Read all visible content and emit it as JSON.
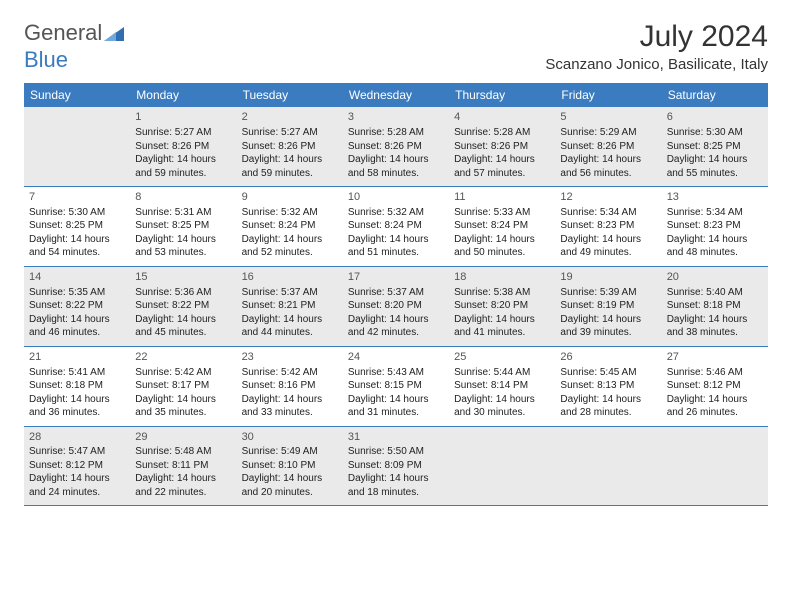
{
  "brand": {
    "name_part1": "General",
    "name_part2": "Blue",
    "triangle_color": "#2f6fb0"
  },
  "title": "July 2024",
  "location": "Scanzano Jonico, Basilicate, Italy",
  "colors": {
    "header_bg": "#3b7bbf",
    "header_text": "#ffffff",
    "row_border": "#3b7bbf",
    "shaded_bg": "#eaeaea",
    "page_bg": "#ffffff",
    "body_text": "#222222",
    "daynum_text": "#555555"
  },
  "day_names": [
    "Sunday",
    "Monday",
    "Tuesday",
    "Wednesday",
    "Thursday",
    "Friday",
    "Saturday"
  ],
  "weeks": [
    [
      {
        "num": "",
        "lines": [],
        "shaded": true
      },
      {
        "num": "1",
        "lines": [
          "Sunrise: 5:27 AM",
          "Sunset: 8:26 PM",
          "Daylight: 14 hours and 59 minutes."
        ],
        "shaded": true
      },
      {
        "num": "2",
        "lines": [
          "Sunrise: 5:27 AM",
          "Sunset: 8:26 PM",
          "Daylight: 14 hours and 59 minutes."
        ],
        "shaded": true
      },
      {
        "num": "3",
        "lines": [
          "Sunrise: 5:28 AM",
          "Sunset: 8:26 PM",
          "Daylight: 14 hours and 58 minutes."
        ],
        "shaded": true
      },
      {
        "num": "4",
        "lines": [
          "Sunrise: 5:28 AM",
          "Sunset: 8:26 PM",
          "Daylight: 14 hours and 57 minutes."
        ],
        "shaded": true
      },
      {
        "num": "5",
        "lines": [
          "Sunrise: 5:29 AM",
          "Sunset: 8:26 PM",
          "Daylight: 14 hours and 56 minutes."
        ],
        "shaded": true
      },
      {
        "num": "6",
        "lines": [
          "Sunrise: 5:30 AM",
          "Sunset: 8:25 PM",
          "Daylight: 14 hours and 55 minutes."
        ],
        "shaded": true
      }
    ],
    [
      {
        "num": "7",
        "lines": [
          "Sunrise: 5:30 AM",
          "Sunset: 8:25 PM",
          "Daylight: 14 hours and 54 minutes."
        ],
        "shaded": false
      },
      {
        "num": "8",
        "lines": [
          "Sunrise: 5:31 AM",
          "Sunset: 8:25 PM",
          "Daylight: 14 hours and 53 minutes."
        ],
        "shaded": false
      },
      {
        "num": "9",
        "lines": [
          "Sunrise: 5:32 AM",
          "Sunset: 8:24 PM",
          "Daylight: 14 hours and 52 minutes."
        ],
        "shaded": false
      },
      {
        "num": "10",
        "lines": [
          "Sunrise: 5:32 AM",
          "Sunset: 8:24 PM",
          "Daylight: 14 hours and 51 minutes."
        ],
        "shaded": false
      },
      {
        "num": "11",
        "lines": [
          "Sunrise: 5:33 AM",
          "Sunset: 8:24 PM",
          "Daylight: 14 hours and 50 minutes."
        ],
        "shaded": false
      },
      {
        "num": "12",
        "lines": [
          "Sunrise: 5:34 AM",
          "Sunset: 8:23 PM",
          "Daylight: 14 hours and 49 minutes."
        ],
        "shaded": false
      },
      {
        "num": "13",
        "lines": [
          "Sunrise: 5:34 AM",
          "Sunset: 8:23 PM",
          "Daylight: 14 hours and 48 minutes."
        ],
        "shaded": false
      }
    ],
    [
      {
        "num": "14",
        "lines": [
          "Sunrise: 5:35 AM",
          "Sunset: 8:22 PM",
          "Daylight: 14 hours and 46 minutes."
        ],
        "shaded": true
      },
      {
        "num": "15",
        "lines": [
          "Sunrise: 5:36 AM",
          "Sunset: 8:22 PM",
          "Daylight: 14 hours and 45 minutes."
        ],
        "shaded": true
      },
      {
        "num": "16",
        "lines": [
          "Sunrise: 5:37 AM",
          "Sunset: 8:21 PM",
          "Daylight: 14 hours and 44 minutes."
        ],
        "shaded": true
      },
      {
        "num": "17",
        "lines": [
          "Sunrise: 5:37 AM",
          "Sunset: 8:20 PM",
          "Daylight: 14 hours and 42 minutes."
        ],
        "shaded": true
      },
      {
        "num": "18",
        "lines": [
          "Sunrise: 5:38 AM",
          "Sunset: 8:20 PM",
          "Daylight: 14 hours and 41 minutes."
        ],
        "shaded": true
      },
      {
        "num": "19",
        "lines": [
          "Sunrise: 5:39 AM",
          "Sunset: 8:19 PM",
          "Daylight: 14 hours and 39 minutes."
        ],
        "shaded": true
      },
      {
        "num": "20",
        "lines": [
          "Sunrise: 5:40 AM",
          "Sunset: 8:18 PM",
          "Daylight: 14 hours and 38 minutes."
        ],
        "shaded": true
      }
    ],
    [
      {
        "num": "21",
        "lines": [
          "Sunrise: 5:41 AM",
          "Sunset: 8:18 PM",
          "Daylight: 14 hours and 36 minutes."
        ],
        "shaded": false
      },
      {
        "num": "22",
        "lines": [
          "Sunrise: 5:42 AM",
          "Sunset: 8:17 PM",
          "Daylight: 14 hours and 35 minutes."
        ],
        "shaded": false
      },
      {
        "num": "23",
        "lines": [
          "Sunrise: 5:42 AM",
          "Sunset: 8:16 PM",
          "Daylight: 14 hours and 33 minutes."
        ],
        "shaded": false
      },
      {
        "num": "24",
        "lines": [
          "Sunrise: 5:43 AM",
          "Sunset: 8:15 PM",
          "Daylight: 14 hours and 31 minutes."
        ],
        "shaded": false
      },
      {
        "num": "25",
        "lines": [
          "Sunrise: 5:44 AM",
          "Sunset: 8:14 PM",
          "Daylight: 14 hours and 30 minutes."
        ],
        "shaded": false
      },
      {
        "num": "26",
        "lines": [
          "Sunrise: 5:45 AM",
          "Sunset: 8:13 PM",
          "Daylight: 14 hours and 28 minutes."
        ],
        "shaded": false
      },
      {
        "num": "27",
        "lines": [
          "Sunrise: 5:46 AM",
          "Sunset: 8:12 PM",
          "Daylight: 14 hours and 26 minutes."
        ],
        "shaded": false
      }
    ],
    [
      {
        "num": "28",
        "lines": [
          "Sunrise: 5:47 AM",
          "Sunset: 8:12 PM",
          "Daylight: 14 hours and 24 minutes."
        ],
        "shaded": true
      },
      {
        "num": "29",
        "lines": [
          "Sunrise: 5:48 AM",
          "Sunset: 8:11 PM",
          "Daylight: 14 hours and 22 minutes."
        ],
        "shaded": true
      },
      {
        "num": "30",
        "lines": [
          "Sunrise: 5:49 AM",
          "Sunset: 8:10 PM",
          "Daylight: 14 hours and 20 minutes."
        ],
        "shaded": true
      },
      {
        "num": "31",
        "lines": [
          "Sunrise: 5:50 AM",
          "Sunset: 8:09 PM",
          "Daylight: 14 hours and 18 minutes."
        ],
        "shaded": true
      },
      {
        "num": "",
        "lines": [],
        "shaded": true
      },
      {
        "num": "",
        "lines": [],
        "shaded": true
      },
      {
        "num": "",
        "lines": [],
        "shaded": true
      }
    ]
  ]
}
